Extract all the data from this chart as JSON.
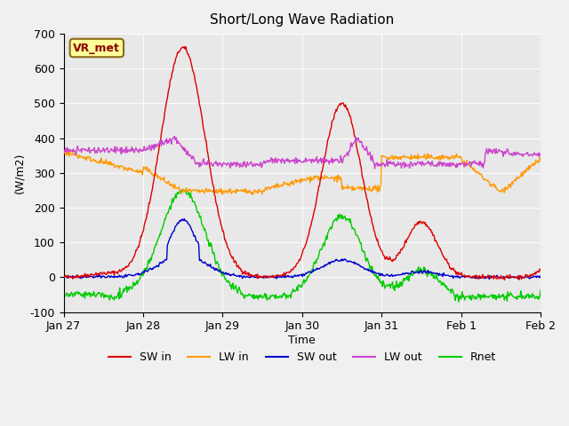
{
  "title": "Short/Long Wave Radiation",
  "xlabel": "Time",
  "ylabel": "(W/m2)",
  "ylim": [
    -100,
    700
  ],
  "yticks": [
    -100,
    0,
    100,
    200,
    300,
    400,
    500,
    600,
    700
  ],
  "legend_label": "VR_met",
  "series_colors": {
    "SW_in": "#dd0000",
    "LW_in": "#ff9900",
    "SW_out": "#0000cc",
    "LW_out": "#cc44cc",
    "Rnet": "#00cc00"
  },
  "series_names": [
    "SW in",
    "LW in",
    "SW out",
    "LW out",
    "Rnet"
  ],
  "background_color": "#e8e8e8",
  "plot_bg_color": "#e8e8e8",
  "n_points": 700,
  "x_start": 0,
  "x_end": 6.0,
  "xtick_positions": [
    0,
    1,
    2,
    3,
    4,
    5,
    6
  ],
  "xtick_labels": [
    "Jan 27",
    "Jan 28",
    "Jan 29",
    "Jan 30",
    "Jan 31",
    "Feb 1",
    "Feb 2"
  ]
}
